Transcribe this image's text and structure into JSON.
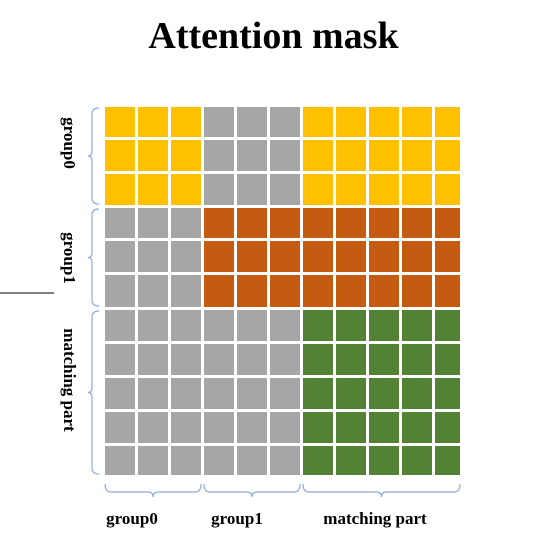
{
  "title": "Attention mask",
  "groups": [
    {
      "label": "group0",
      "size": 3
    },
    {
      "label": "group1",
      "size": 3
    },
    {
      "label": "matching part",
      "size": 5
    }
  ],
  "colors": {
    "masked": "#a6a6a6",
    "group0": "#ffc000",
    "group1": "#c55a11",
    "matching_part": "#548235",
    "bracket": "#8faadc",
    "gridline": "#ffffff"
  },
  "blocks": [
    [
      "group0",
      "masked",
      "group0"
    ],
    [
      "masked",
      "group1",
      "group1"
    ],
    [
      "masked",
      "masked",
      "matching_part"
    ]
  ]
}
